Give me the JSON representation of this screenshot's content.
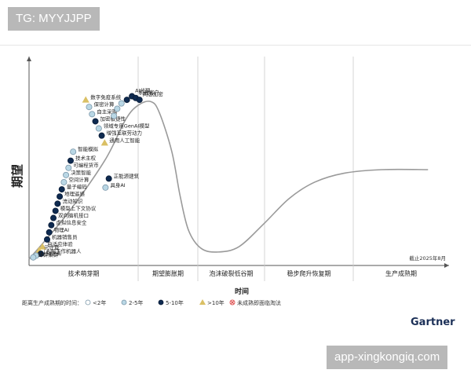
{
  "watermark_top": "TG: MYYJJPP",
  "watermark_bottom": "app-xingkongiq.com",
  "brand": "Gartner",
  "colors": {
    "lt2": "#ffffff",
    "y2to5": "#b9d7e5",
    "y5to10": "#0e2a50",
    "gt10": "#dac065",
    "obsolete": "#e05a5a",
    "curve": "#9a9a9a",
    "axis": "#555555"
  },
  "chart_data": {
    "type": "scatter",
    "ylabel": "期望",
    "xlabel": "时间",
    "note": "截止2025年8月",
    "phases": [
      "技术萌芽期",
      "期望膨胀期",
      "泡沫破裂低谷期",
      "稳步爬升恢复期",
      "生产成熟期"
    ],
    "legend": {
      "title": "距离生产成熟期的时间：",
      "items": [
        {
          "key": "lt2",
          "label": "<2年"
        },
        {
          "key": "y2to5",
          "label": "2-5年"
        },
        {
          "key": "y5to10",
          "label": "5-10年"
        },
        {
          "key": "gt10",
          "label": ">10年"
        },
        {
          "key": "obsolete",
          "label": "未成熟即面临淘汰"
        }
      ]
    },
    "x_range": [
      0,
      100
    ],
    "y_range": [
      0,
      100
    ],
    "curve": [
      [
        0,
        0
      ],
      [
        9,
        25
      ],
      [
        18,
        55
      ],
      [
        23,
        78
      ],
      [
        26,
        86
      ],
      [
        29,
        88
      ],
      [
        31,
        82
      ],
      [
        34,
        60
      ],
      [
        36,
        35
      ],
      [
        38,
        16
      ],
      [
        41,
        6
      ],
      [
        45,
        4
      ],
      [
        50,
        7
      ],
      [
        56,
        20
      ],
      [
        62,
        34
      ],
      [
        68,
        43
      ],
      [
        75,
        48
      ],
      [
        84,
        50
      ],
      [
        95,
        50
      ]
    ],
    "points": [
      {
        "x": 13.5,
        "y": 89,
        "c": "gt10",
        "label": "数字免疫系统"
      },
      {
        "x": 14.3,
        "y": 85,
        "c": "y2to5",
        "label": "保密计算"
      },
      {
        "x": 15.0,
        "y": 81,
        "c": "y2to5",
        "label": "自主采购"
      },
      {
        "x": 15.8,
        "y": 77,
        "c": "y5to10",
        "label": "加密敏捷性"
      },
      {
        "x": 16.6,
        "y": 73,
        "c": "y2to5",
        "label": "领域专用GenAI模型"
      },
      {
        "x": 17.3,
        "y": 69,
        "c": "y5to10",
        "label": "增强互联劳动力"
      },
      {
        "x": 18.0,
        "y": 65,
        "c": "gt10",
        "label": "通用人工智能"
      },
      {
        "x": 10.5,
        "y": 60,
        "c": "y2to5",
        "label": "智能模拟"
      },
      {
        "x": 9.9,
        "y": 55,
        "c": "y5to10",
        "label": "技术主权"
      },
      {
        "x": 9.4,
        "y": 51,
        "c": "y2to5",
        "label": "可编程货币"
      },
      {
        "x": 8.8,
        "y": 47,
        "c": "y2to5",
        "label": "决策智能"
      },
      {
        "x": 8.3,
        "y": 43,
        "c": "y2to5",
        "label": "空间计算"
      },
      {
        "x": 7.8,
        "y": 39,
        "c": "y5to10",
        "label": "量子编码"
      },
      {
        "x": 7.3,
        "y": 35,
        "c": "y5to10",
        "label": "地理遥感"
      },
      {
        "x": 6.8,
        "y": 31,
        "c": "y5to10",
        "label": "流动知识"
      },
      {
        "x": 6.3,
        "y": 27,
        "c": "y5to10",
        "label": "模型上下文协议"
      },
      {
        "x": 5.8,
        "y": 23,
        "c": "y5to10",
        "label": "双向脑机接口"
      },
      {
        "x": 5.3,
        "y": 19,
        "c": "y5to10",
        "label": "虚拟信息安全"
      },
      {
        "x": 4.8,
        "y": 15,
        "c": "y5to10",
        "label": "物理AI"
      },
      {
        "x": 4.3,
        "y": 11,
        "c": "y5to10",
        "label": "机器销售员"
      },
      {
        "x": 3.2,
        "y": 7,
        "c": "gt10",
        "label": "自适应体验"
      },
      {
        "x": 2.4,
        "y": 5,
        "c": "gt10",
        "label": "元计算"
      },
      {
        "x": 2.8,
        "y": 3,
        "c": "y5to10",
        "label": "人形工作机器人"
      },
      {
        "x": 1.7,
        "y": 2,
        "c": "y2to5",
        "label": "认知剥离"
      },
      {
        "x": 1.0,
        "y": 1,
        "c": "y2to5",
        "label": "蜂群集群"
      },
      {
        "x": 19.0,
        "y": 45,
        "c": "y5to10",
        "label": "正能源建筑"
      },
      {
        "x": 18.2,
        "y": 40,
        "c": "y2to5",
        "label": "具身AI"
      },
      {
        "x": 24.5,
        "y": 91,
        "c": "y5to10",
        "label": "AI代理"
      },
      {
        "x": 25.4,
        "y": 90,
        "c": "y5to10",
        "label": "机器客户"
      },
      {
        "x": 26.3,
        "y": 89,
        "c": "y5to10",
        "label": "同态加密"
      },
      {
        "x": 22.0,
        "y": 87,
        "c": "y2to5",
        "label": ""
      },
      {
        "x": 23.3,
        "y": 89,
        "c": "y5to10",
        "label": ""
      },
      {
        "x": 21.0,
        "y": 84,
        "c": "y2to5",
        "label": ""
      },
      {
        "x": 20.2,
        "y": 80,
        "c": "y2to5",
        "label": ""
      }
    ]
  }
}
